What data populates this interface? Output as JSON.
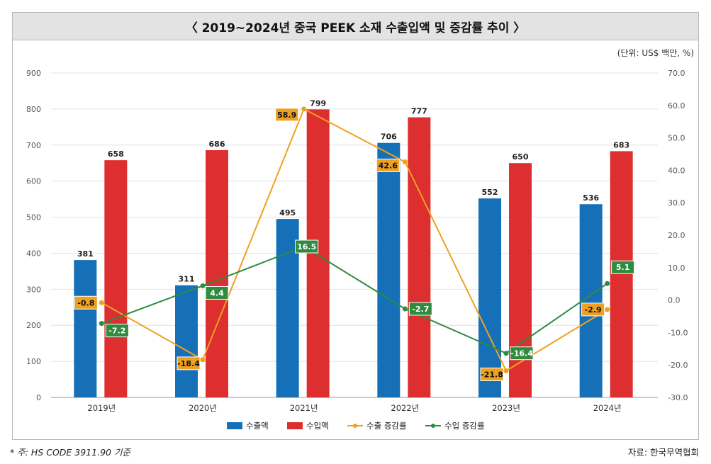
{
  "header": {
    "title": "〈 2019~2024년 중국 PEEK 소재 수출입액 및 증감률 추이 〉"
  },
  "unit_label": "(단위: US$ 백만, %)",
  "footnote": "* 주: HS CODE 3911.90 기준",
  "source": "자료: 한국무역협회",
  "colors": {
    "export": "#1570b8",
    "import": "#dd2f2f",
    "export_rate": "#f0a020",
    "import_rate": "#2e8b3f",
    "grid": "#e2e2e2",
    "axis": "#555555"
  },
  "chart_data": {
    "type": "bar",
    "title": "〈 2019~2024년 중국 PEEK 소재 수출입액 및 증감률 추이 〉",
    "categories": [
      "2019년",
      "2020년",
      "2021년",
      "2022년",
      "2023년",
      "2024년"
    ],
    "series": [
      {
        "name": "수출액",
        "kind": "bar",
        "axis": "left",
        "values": [
          381,
          311,
          495,
          706,
          552,
          536
        ]
      },
      {
        "name": "수입액",
        "kind": "bar",
        "axis": "left",
        "values": [
          658,
          686,
          799,
          777,
          650,
          683
        ]
      },
      {
        "name": "수출 증감률",
        "kind": "line",
        "axis": "right",
        "values": [
          -0.8,
          -18.4,
          58.9,
          42.6,
          -21.8,
          -2.9
        ]
      },
      {
        "name": "수입 증감률",
        "kind": "line",
        "axis": "right",
        "values": [
          -7.2,
          4.4,
          16.5,
          -2.7,
          -16.4,
          5.1
        ]
      }
    ],
    "value_labels": {
      "export": [
        "381",
        "311",
        "495",
        "706",
        "552",
        "536"
      ],
      "import": [
        "658",
        "686",
        "799",
        "777",
        "650",
        "683"
      ],
      "export_rate": [
        "-0.8",
        "-18.4",
        "58.9",
        "42.6",
        "-21.8",
        "-2.9"
      ],
      "import_rate": [
        "-7.2",
        "4.4",
        "16.5",
        "-2.7",
        "-16.4",
        "5.1"
      ]
    },
    "y_left": {
      "ylim": [
        0,
        900
      ],
      "ticks": [
        0,
        100,
        200,
        300,
        400,
        500,
        600,
        700,
        800,
        900
      ],
      "tick_labels": [
        "0",
        "100",
        "200",
        "300",
        "400",
        "500",
        "600",
        "700",
        "800",
        "900"
      ]
    },
    "y_right": {
      "ylim": [
        -30,
        70
      ],
      "ticks": [
        -30,
        -20,
        -10,
        0,
        10,
        20,
        30,
        40,
        50,
        60,
        70
      ],
      "tick_labels": [
        "-30.0",
        "-20.0",
        "-10.0",
        "0.0",
        "10.0",
        "20.0",
        "30.0",
        "40.0",
        "50.0",
        "60.0",
        "70.0"
      ]
    },
    "grid": true,
    "legend": {
      "position": "bottom",
      "items": [
        "수출액",
        "수입액",
        "수출 증감률",
        "수입 증감률"
      ]
    }
  }
}
